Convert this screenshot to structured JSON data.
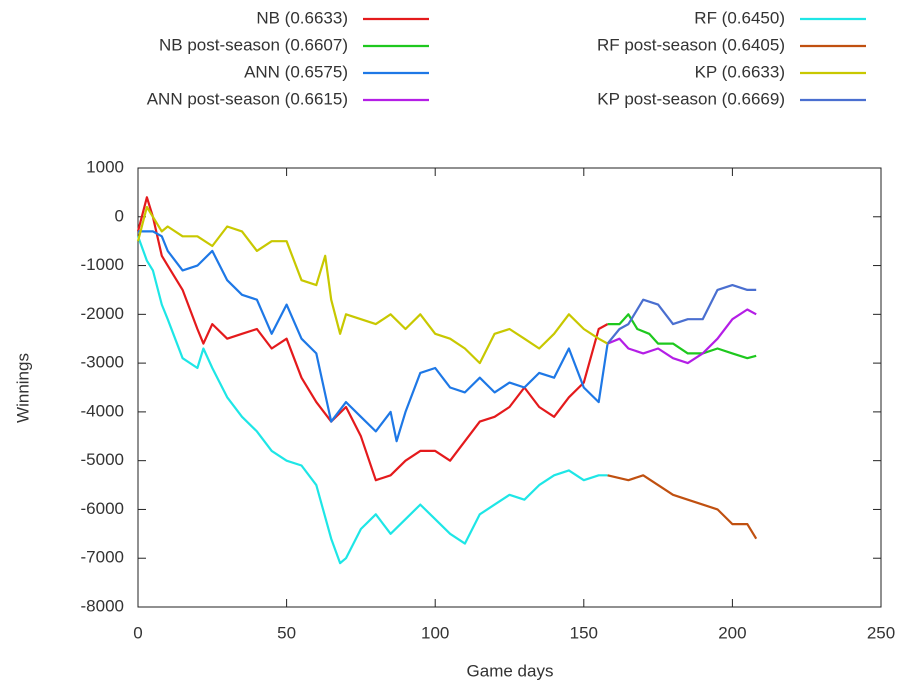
{
  "chart_data": {
    "type": "line",
    "x_label": "Game days",
    "y_label": "Winnings",
    "xlim": [
      0,
      250
    ],
    "xticks": [
      0,
      50,
      100,
      150,
      200,
      250
    ],
    "ylim": [
      -8000,
      1000
    ],
    "yticks": [
      -8000,
      -7000,
      -6000,
      -5000,
      -4000,
      -3000,
      -2000,
      -1000,
      0,
      1000
    ],
    "series": [
      {
        "name": "NB (0.6633)",
        "color": "#e41a1c",
        "x": [
          0,
          3,
          5,
          8,
          10,
          15,
          20,
          22,
          25,
          30,
          35,
          40,
          45,
          50,
          55,
          60,
          65,
          70,
          75,
          80,
          85,
          90,
          95,
          100,
          105,
          110,
          115,
          120,
          125,
          130,
          135,
          140,
          145,
          150,
          155,
          158
        ],
        "values": [
          -300,
          400,
          0,
          -800,
          -1000,
          -1500,
          -2300,
          -2600,
          -2200,
          -2500,
          -2400,
          -2300,
          -2700,
          -2500,
          -3300,
          -3800,
          -4200,
          -3900,
          -4500,
          -5400,
          -5300,
          -5000,
          -4800,
          -4800,
          -5000,
          -4600,
          -4200,
          -4100,
          -3900,
          -3500,
          -3900,
          -4100,
          -3700,
          -3400,
          -2300,
          -2200
        ]
      },
      {
        "name": "NB post-season (0.6607)",
        "color": "#1ec81e",
        "x": [
          158,
          162,
          165,
          168,
          172,
          175,
          180,
          185,
          190,
          195,
          200,
          205,
          208
        ],
        "values": [
          -2200,
          -2200,
          -2000,
          -2300,
          -2400,
          -2600,
          -2600,
          -2800,
          -2800,
          -2700,
          -2800,
          -2900,
          -2850
        ]
      },
      {
        "name": "ANN (0.6575)",
        "color": "#1e78e6",
        "x": [
          0,
          5,
          8,
          10,
          15,
          20,
          25,
          30,
          35,
          40,
          45,
          50,
          55,
          60,
          65,
          70,
          75,
          80,
          85,
          87,
          90,
          95,
          100,
          105,
          110,
          115,
          120,
          125,
          130,
          135,
          140,
          145,
          150,
          155,
          158
        ],
        "values": [
          -300,
          -300,
          -400,
          -700,
          -1100,
          -1000,
          -700,
          -1300,
          -1600,
          -1700,
          -2400,
          -1800,
          -2500,
          -2800,
          -4200,
          -3800,
          -4100,
          -4400,
          -4000,
          -4600,
          -4000,
          -3200,
          -3100,
          -3500,
          -3600,
          -3300,
          -3600,
          -3400,
          -3500,
          -3200,
          -3300,
          -2700,
          -3500,
          -3800,
          -2600
        ]
      },
      {
        "name": "ANN post-season (0.6615)",
        "color": "#b41ee6",
        "x": [
          158,
          162,
          165,
          170,
          175,
          180,
          185,
          190,
          195,
          200,
          205,
          208
        ],
        "values": [
          -2600,
          -2500,
          -2700,
          -2800,
          -2700,
          -2900,
          -3000,
          -2800,
          -2500,
          -2100,
          -1900,
          -2000
        ]
      },
      {
        "name": "RF (0.6450)",
        "color": "#1ee6e6",
        "x": [
          0,
          3,
          5,
          8,
          10,
          15,
          20,
          22,
          25,
          30,
          35,
          40,
          45,
          50,
          55,
          60,
          65,
          68,
          70,
          75,
          80,
          85,
          90,
          95,
          100,
          105,
          110,
          115,
          120,
          125,
          130,
          135,
          140,
          145,
          150,
          155,
          158
        ],
        "values": [
          -400,
          -900,
          -1100,
          -1800,
          -2100,
          -2900,
          -3100,
          -2700,
          -3100,
          -3700,
          -4100,
          -4400,
          -4800,
          -5000,
          -5100,
          -5500,
          -6600,
          -7100,
          -7000,
          -6400,
          -6100,
          -6500,
          -6200,
          -5900,
          -6200,
          -6500,
          -6700,
          -6100,
          -5900,
          -5700,
          -5800,
          -5500,
          -5300,
          -5200,
          -5400,
          -5300,
          -5300
        ]
      },
      {
        "name": "RF post-season (0.6405)",
        "color": "#c05010",
        "x": [
          158,
          165,
          170,
          175,
          180,
          185,
          190,
          195,
          200,
          205,
          208
        ],
        "values": [
          -5300,
          -5400,
          -5300,
          -5500,
          -5700,
          -5800,
          -5900,
          -6000,
          -6300,
          -6300,
          -6600
        ]
      },
      {
        "name": "KP (0.6633)",
        "color": "#c8c800",
        "x": [
          0,
          3,
          5,
          8,
          10,
          15,
          20,
          25,
          30,
          35,
          40,
          45,
          50,
          55,
          60,
          63,
          65,
          68,
          70,
          75,
          80,
          85,
          90,
          95,
          100,
          105,
          110,
          115,
          120,
          125,
          130,
          135,
          140,
          145,
          150,
          155,
          158
        ],
        "values": [
          -500,
          200,
          0,
          -300,
          -200,
          -400,
          -400,
          -600,
          -200,
          -300,
          -700,
          -500,
          -500,
          -1300,
          -1400,
          -800,
          -1700,
          -2400,
          -2000,
          -2100,
          -2200,
          -2000,
          -2300,
          -2000,
          -2400,
          -2500,
          -2700,
          -3000,
          -2400,
          -2300,
          -2500,
          -2700,
          -2400,
          -2000,
          -2300,
          -2500,
          -2600
        ]
      },
      {
        "name": "KP post-season (0.6669)",
        "color": "#4a6fd0",
        "x": [
          158,
          162,
          165,
          170,
          175,
          180,
          185,
          190,
          195,
          200,
          205,
          208
        ],
        "values": [
          -2600,
          -2300,
          -2200,
          -1700,
          -1800,
          -2200,
          -2100,
          -2100,
          -1500,
          -1400,
          -1500,
          -1500
        ]
      }
    ]
  }
}
